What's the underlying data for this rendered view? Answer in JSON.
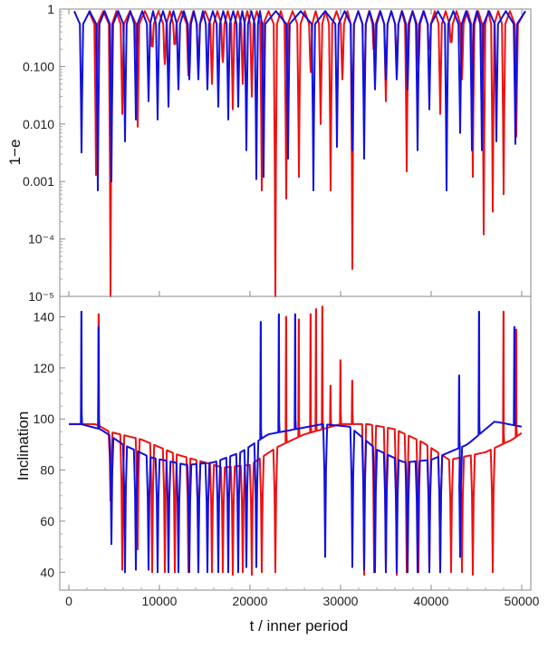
{
  "chart_data": [
    {
      "type": "line",
      "panel": "top",
      "ylabel": "1−e",
      "yscale": "log",
      "ylim": [
        1e-05,
        1
      ],
      "xlim": [
        -1000,
        51000
      ],
      "ytick_labels": [
        {
          "value": 1,
          "label": "1"
        },
        {
          "value": 0.1,
          "label": "0.100"
        },
        {
          "value": 0.01,
          "label": "0.010"
        },
        {
          "value": 0.001,
          "label": "0.001"
        },
        {
          "value": 0.0001,
          "label": "10⁻⁴"
        },
        {
          "value": 1e-05,
          "label": "10⁻⁵"
        }
      ],
      "series": [
        {
          "name": "red",
          "color": "#ee1111",
          "minima": [
            {
              "x": 3000,
              "y": 0.0013
            },
            {
              "x": 4600,
              "y": 1e-05
            },
            {
              "x": 5900,
              "y": 0.015
            },
            {
              "x": 7600,
              "y": 0.009
            },
            {
              "x": 9200,
              "y": 0.25
            },
            {
              "x": 10600,
              "y": 0.11
            },
            {
              "x": 11700,
              "y": 0.3
            },
            {
              "x": 13200,
              "y": 0.07
            },
            {
              "x": 14300,
              "y": 0.1
            },
            {
              "x": 15800,
              "y": 0.05
            },
            {
              "x": 17000,
              "y": 0.12
            },
            {
              "x": 18100,
              "y": 0.018
            },
            {
              "x": 19200,
              "y": 0.05
            },
            {
              "x": 20200,
              "y": 0.03
            },
            {
              "x": 21300,
              "y": 0.0007
            },
            {
              "x": 22800,
              "y": 1e-05
            },
            {
              "x": 24000,
              "y": 0.0005
            },
            {
              "x": 25400,
              "y": 0.0012
            },
            {
              "x": 26700,
              "y": 0.08
            },
            {
              "x": 27800,
              "y": 0.01
            },
            {
              "x": 28900,
              "y": 0.0007
            },
            {
              "x": 30200,
              "y": 0.06
            },
            {
              "x": 31300,
              "y": 3e-05
            },
            {
              "x": 32600,
              "y": 0.015
            },
            {
              "x": 33700,
              "y": 0.2
            },
            {
              "x": 35000,
              "y": 0.025
            },
            {
              "x": 36200,
              "y": 0.12
            },
            {
              "x": 37300,
              "y": 0.0015
            },
            {
              "x": 38600,
              "y": 0.1
            },
            {
              "x": 39800,
              "y": 0.2
            },
            {
              "x": 41000,
              "y": 0.015
            },
            {
              "x": 42200,
              "y": 0.35
            },
            {
              "x": 43400,
              "y": 0.06
            },
            {
              "x": 44600,
              "y": 0.0012
            },
            {
              "x": 45800,
              "y": 0.00012
            },
            {
              "x": 46800,
              "y": 0.0003
            },
            {
              "x": 48000,
              "y": 0.0006
            },
            {
              "x": 49400,
              "y": 0.006
            }
          ]
        },
        {
          "name": "blue",
          "color": "#1111dd",
          "minima": [
            {
              "x": 1400,
              "y": 0.0032
            },
            {
              "x": 3200,
              "y": 0.0007
            },
            {
              "x": 4700,
              "y": 0.001
            },
            {
              "x": 6200,
              "y": 0.005
            },
            {
              "x": 7400,
              "y": 0.012
            },
            {
              "x": 8800,
              "y": 0.025
            },
            {
              "x": 9800,
              "y": 0.012
            },
            {
              "x": 11000,
              "y": 0.02
            },
            {
              "x": 12100,
              "y": 0.04
            },
            {
              "x": 13300,
              "y": 0.06
            },
            {
              "x": 14300,
              "y": 0.06
            },
            {
              "x": 15300,
              "y": 0.04
            },
            {
              "x": 16500,
              "y": 0.02
            },
            {
              "x": 17600,
              "y": 0.012
            },
            {
              "x": 18700,
              "y": 0.02
            },
            {
              "x": 19600,
              "y": 0.0035
            },
            {
              "x": 20700,
              "y": 0.0011
            },
            {
              "x": 21500,
              "y": 0.0012
            },
            {
              "x": 24200,
              "y": 0.0025
            },
            {
              "x": 27000,
              "y": 0.0007
            },
            {
              "x": 29600,
              "y": 0.004
            },
            {
              "x": 31300,
              "y": 0.0035
            },
            {
              "x": 32600,
              "y": 0.0025
            },
            {
              "x": 33800,
              "y": 0.04
            },
            {
              "x": 35000,
              "y": 0.06
            },
            {
              "x": 36200,
              "y": 0.06
            },
            {
              "x": 37400,
              "y": 0.04
            },
            {
              "x": 38500,
              "y": 0.0035
            },
            {
              "x": 39800,
              "y": 0.018
            },
            {
              "x": 41700,
              "y": 0.0007
            },
            {
              "x": 43200,
              "y": 0.007
            },
            {
              "x": 44500,
              "y": 0.0035
            },
            {
              "x": 45600,
              "y": 0.0035
            },
            {
              "x": 47200,
              "y": 0.005
            },
            {
              "x": 49300,
              "y": 0.0045
            }
          ]
        }
      ]
    },
    {
      "type": "line",
      "panel": "bottom",
      "ylabel": "Inclination",
      "xlabel": "t / inner period",
      "ylim": [
        33,
        148
      ],
      "xlim": [
        -1000,
        51000
      ],
      "yticks": [
        40,
        60,
        80,
        100,
        120,
        140
      ],
      "xticks": [
        0,
        10000,
        20000,
        30000,
        40000,
        50000
      ],
      "series": [
        {
          "name": "red",
          "color": "#ee1111",
          "baseline_t": [
            0,
            3000,
            4500,
            8000,
            12000,
            17000,
            20000,
            23000,
            26000,
            30000,
            33000,
            36000,
            39000,
            42000,
            46000,
            49000,
            51000
          ],
          "baseline_v": [
            98,
            98,
            95,
            92,
            86,
            81,
            82,
            89,
            94,
            98,
            98,
            96,
            91,
            84,
            87,
            92,
            97
          ],
          "minima": [
            {
              "x": 4600,
              "y": 68
            },
            {
              "x": 5900,
              "y": 41
            },
            {
              "x": 7600,
              "y": 49
            },
            {
              "x": 9200,
              "y": 40
            },
            {
              "x": 10600,
              "y": 40
            },
            {
              "x": 11700,
              "y": 40
            },
            {
              "x": 13200,
              "y": 40
            },
            {
              "x": 14300,
              "y": 40
            },
            {
              "x": 15800,
              "y": 40
            },
            {
              "x": 17000,
              "y": 40
            },
            {
              "x": 18100,
              "y": 39
            },
            {
              "x": 19200,
              "y": 40
            },
            {
              "x": 20200,
              "y": 39
            },
            {
              "x": 21300,
              "y": 40
            },
            {
              "x": 22800,
              "y": 40
            },
            {
              "x": 32600,
              "y": 39
            },
            {
              "x": 33700,
              "y": 40
            },
            {
              "x": 35000,
              "y": 40
            },
            {
              "x": 36200,
              "y": 39
            },
            {
              "x": 37300,
              "y": 40
            },
            {
              "x": 38600,
              "y": 40
            },
            {
              "x": 39800,
              "y": 40
            },
            {
              "x": 41000,
              "y": 40
            },
            {
              "x": 42200,
              "y": 40
            },
            {
              "x": 43400,
              "y": 40
            },
            {
              "x": 44600,
              "y": 39
            },
            {
              "x": 46800,
              "y": 40
            }
          ],
          "spikes": [
            {
              "x": 3300,
              "y": 141
            },
            {
              "x": 24000,
              "y": 140
            },
            {
              "x": 25400,
              "y": 139
            },
            {
              "x": 26700,
              "y": 141
            },
            {
              "x": 27300,
              "y": 143
            },
            {
              "x": 28000,
              "y": 144
            },
            {
              "x": 28900,
              "y": 113
            },
            {
              "x": 30000,
              "y": 123
            },
            {
              "x": 31300,
              "y": 115
            },
            {
              "x": 48000,
              "y": 142
            },
            {
              "x": 49400,
              "y": 135
            }
          ]
        },
        {
          "name": "blue",
          "color": "#1111dd",
          "baseline_t": [
            0,
            1300,
            3500,
            6000,
            9000,
            13000,
            16000,
            19000,
            22000,
            25000,
            28000,
            31000,
            34000,
            37000,
            40000,
            44000,
            47000,
            50000
          ],
          "baseline_v": [
            98,
            98,
            96,
            90,
            85,
            82,
            83,
            87,
            94,
            96,
            98,
            97,
            88,
            83,
            84,
            90,
            99,
            97
          ],
          "minima": [
            {
              "x": 4700,
              "y": 51
            },
            {
              "x": 6200,
              "y": 40
            },
            {
              "x": 7400,
              "y": 41
            },
            {
              "x": 8800,
              "y": 41
            },
            {
              "x": 9800,
              "y": 40
            },
            {
              "x": 11000,
              "y": 40
            },
            {
              "x": 12100,
              "y": 40
            },
            {
              "x": 13300,
              "y": 40
            },
            {
              "x": 14300,
              "y": 40
            },
            {
              "x": 15300,
              "y": 40
            },
            {
              "x": 16500,
              "y": 40
            },
            {
              "x": 17600,
              "y": 40
            },
            {
              "x": 18700,
              "y": 40
            },
            {
              "x": 19600,
              "y": 42
            },
            {
              "x": 20700,
              "y": 42
            },
            {
              "x": 28300,
              "y": 46
            },
            {
              "x": 31300,
              "y": 42
            },
            {
              "x": 32600,
              "y": 41
            },
            {
              "x": 33800,
              "y": 40
            },
            {
              "x": 35000,
              "y": 40
            },
            {
              "x": 36200,
              "y": 40
            },
            {
              "x": 37400,
              "y": 40
            },
            {
              "x": 38500,
              "y": 40
            },
            {
              "x": 39800,
              "y": 40
            },
            {
              "x": 41000,
              "y": 40
            },
            {
              "x": 43200,
              "y": 46
            }
          ],
          "spikes": [
            {
              "x": 1400,
              "y": 142
            },
            {
              "x": 3300,
              "y": 136
            },
            {
              "x": 21200,
              "y": 138
            },
            {
              "x": 23200,
              "y": 141
            },
            {
              "x": 25000,
              "y": 141
            },
            {
              "x": 43100,
              "y": 117
            },
            {
              "x": 45300,
              "y": 142
            },
            {
              "x": 49200,
              "y": 136
            }
          ]
        }
      ]
    }
  ]
}
